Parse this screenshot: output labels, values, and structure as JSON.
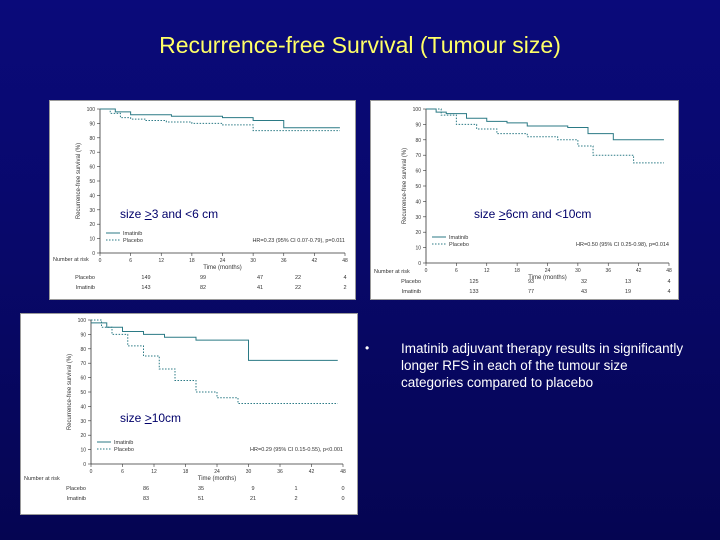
{
  "slide": {
    "title": "Recurrence-free Survival (Tumour size)",
    "bullet": "Imatinib adjuvant therapy results in significantly longer RFS in each of the tumour size categories compared to placebo"
  },
  "chart_data": [
    {
      "type": "line",
      "label_prefix": "size ",
      "label_ge": ">",
      "label_rest": "3 and <6 cm",
      "ylabel": "Recurrence-free survival (%)",
      "xlabel": "Time (months)",
      "xlim": [
        0,
        48
      ],
      "ylim": [
        0,
        100
      ],
      "xticks": [
        0,
        6,
        12,
        18,
        24,
        30,
        36,
        42,
        48
      ],
      "yticks": [
        0,
        10,
        20,
        30,
        40,
        50,
        60,
        70,
        80,
        90,
        100
      ],
      "legend": [
        "Imatinib",
        "Placebo"
      ],
      "stat": "HR=0.23 (95% CI 0.07-0.79), p=0.011",
      "risk_label": "Number at risk",
      "risk_rows": [
        {
          "name": "Placebo",
          "values": [
            "149",
            "99",
            "47",
            "22",
            "4"
          ]
        },
        {
          "name": "Imatinib",
          "values": [
            "143",
            "82",
            "41",
            "22",
            "2"
          ]
        }
      ],
      "series": [
        {
          "name": "Imatinib",
          "style": "solid",
          "x": [
            0,
            3,
            6,
            14,
            24,
            30,
            36,
            47
          ],
          "y": [
            100,
            98,
            96,
            95,
            94,
            92,
            87,
            87
          ]
        },
        {
          "name": "Placebo",
          "style": "dashed",
          "x": [
            0,
            2,
            4,
            6,
            9,
            13,
            18,
            24,
            30,
            47
          ],
          "y": [
            100,
            97,
            94,
            93,
            92,
            91,
            90,
            89,
            85,
            85
          ]
        }
      ]
    },
    {
      "type": "line",
      "label_prefix": "size ",
      "label_ge": ">",
      "label_rest": "6cm and <10cm",
      "ylabel": "Recurrence-free survival (%)",
      "xlabel": "Time (months)",
      "xlim": [
        0,
        48
      ],
      "ylim": [
        0,
        100
      ],
      "xticks": [
        0,
        6,
        12,
        18,
        24,
        30,
        36,
        42,
        48
      ],
      "yticks": [
        0,
        10,
        20,
        30,
        40,
        50,
        60,
        70,
        80,
        90,
        100
      ],
      "legend": [
        "Imatinib",
        "Placebo"
      ],
      "stat": "HR=0.50 (95% CI 0.25-0.98), p=0.014",
      "risk_label": "Number at risk",
      "risk_rows": [
        {
          "name": "Placebo",
          "values": [
            "125",
            "93",
            "32",
            "13",
            "4"
          ]
        },
        {
          "name": "Imatinib",
          "values": [
            "133",
            "77",
            "43",
            "19",
            "4"
          ]
        }
      ],
      "series": [
        {
          "name": "Imatinib",
          "style": "solid",
          "x": [
            0,
            2,
            4,
            8,
            12,
            16,
            20,
            28,
            32,
            37,
            47
          ],
          "y": [
            100,
            98,
            97,
            94,
            92,
            91,
            89,
            88,
            84,
            80,
            80
          ]
        },
        {
          "name": "Placebo",
          "style": "dashed",
          "x": [
            0,
            3,
            6,
            10,
            14,
            20,
            26,
            30,
            33,
            41,
            47
          ],
          "y": [
            100,
            96,
            90,
            87,
            84,
            82,
            80,
            76,
            70,
            65,
            65
          ]
        }
      ]
    },
    {
      "type": "line",
      "label_prefix": "size ",
      "label_ge": ">",
      "label_rest": "10cm",
      "ylabel": "Recurrence-free survival (%)",
      "xlabel": "Time (months)",
      "xlim": [
        0,
        48
      ],
      "ylim": [
        0,
        100
      ],
      "xticks": [
        0,
        6,
        12,
        18,
        24,
        30,
        36,
        42,
        48
      ],
      "yticks": [
        0,
        10,
        20,
        30,
        40,
        50,
        60,
        70,
        80,
        90,
        100
      ],
      "legend": [
        "Imatinib",
        "Placebo"
      ],
      "stat": "HR=0.29 (95% CI 0.15-0.55), p<0.001",
      "risk_label": "Number at risk",
      "risk_rows": [
        {
          "name": "Placebo",
          "values": [
            "86",
            "35",
            "9",
            "1",
            "0"
          ]
        },
        {
          "name": "Imatinib",
          "values": [
            "83",
            "51",
            "21",
            "2",
            "0"
          ]
        }
      ],
      "series": [
        {
          "name": "Imatinib",
          "style": "solid",
          "x": [
            0,
            3,
            6,
            10,
            14,
            20,
            30,
            47
          ],
          "y": [
            98,
            95,
            92,
            90,
            88,
            86,
            72,
            72
          ]
        },
        {
          "name": "Placebo",
          "style": "dashed",
          "x": [
            0,
            2,
            4,
            7,
            10,
            13,
            16,
            20,
            24,
            28,
            47
          ],
          "y": [
            100,
            95,
            90,
            82,
            75,
            66,
            58,
            50,
            46,
            42,
            42
          ]
        }
      ]
    }
  ]
}
